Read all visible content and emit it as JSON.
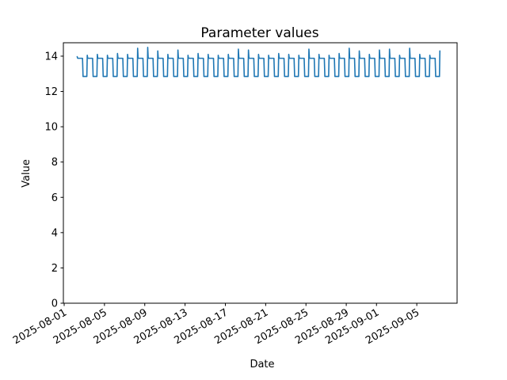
{
  "chart_data": {
    "type": "line",
    "title": "Parameter values",
    "xlabel": "Date",
    "ylabel": "Value",
    "grid": false,
    "legend": "none",
    "background_color": "#ffffff",
    "axes_color": "#000000",
    "ylim": [
      0,
      14.76
    ],
    "yticks": [
      0,
      2,
      4,
      6,
      8,
      10,
      12,
      14
    ],
    "x_axis_start_date": "2025-08-01",
    "x_axis_span_days": 39,
    "x_tick_rotation_deg": 30,
    "xticks": [
      {
        "day": 0,
        "label": "2025-08-01"
      },
      {
        "day": 4,
        "label": "2025-08-05"
      },
      {
        "day": 8,
        "label": "2025-08-09"
      },
      {
        "day": 12,
        "label": "2025-08-13"
      },
      {
        "day": 16,
        "label": "2025-08-17"
      },
      {
        "day": 20,
        "label": "2025-08-21"
      },
      {
        "day": 24,
        "label": "2025-08-25"
      },
      {
        "day": 28,
        "label": "2025-08-29"
      },
      {
        "day": 31,
        "label": "2025-09-01"
      },
      {
        "day": 35,
        "label": "2025-09-05"
      }
    ],
    "series": [
      {
        "name": "parameter-values",
        "color": "#1f77b4",
        "line_width": 1.6,
        "pattern": {
          "description": "daily square wave: low plateau overnight, sharp morning rise with overshoot peak, high plateau through day, sharp evening drop",
          "first_day": "2025-08-02",
          "last_day": "2025-09-07",
          "low_value": 12.85,
          "high_value": 13.88,
          "rise_hour": 7,
          "fall_hour": 20,
          "daily_peaks": [
            13.97,
            14.05,
            14.1,
            14.05,
            14.15,
            14.1,
            14.45,
            14.5,
            14.3,
            14.1,
            14.35,
            14.05,
            14.15,
            14.1,
            14.05,
            14.1,
            14.4,
            14.35,
            14.1,
            14.05,
            14.15,
            14.1,
            14.05,
            14.4,
            14.1,
            14.05,
            14.15,
            14.45,
            14.3,
            14.1,
            14.35,
            14.4,
            14.05,
            14.45,
            14.1,
            14.05,
            14.3
          ]
        }
      }
    ]
  }
}
